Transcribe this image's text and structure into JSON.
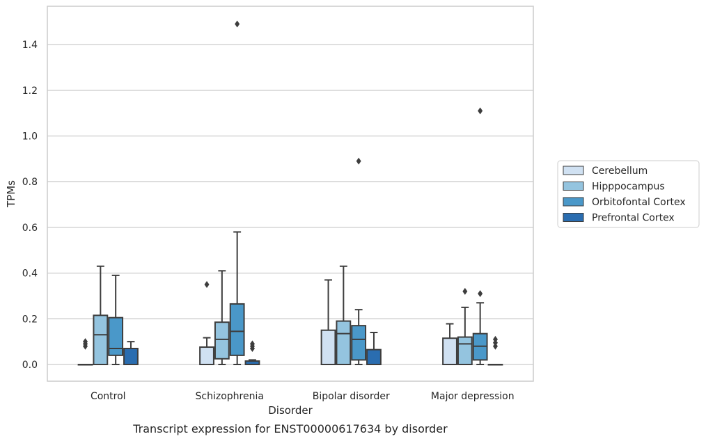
{
  "chart_data": {
    "type": "box",
    "xlabel": "Disorder",
    "ylabel": "TPMs",
    "caption": "Transcript expression for ENST00000617634 by disorder",
    "ylim": [
      -0.07,
      1.57
    ],
    "yticks": [
      0.0,
      0.2,
      0.4,
      0.6,
      0.8,
      1.0,
      1.2,
      1.4
    ],
    "ytick_labels": [
      "0.0",
      "0.2",
      "0.4",
      "0.6",
      "0.8",
      "1.0",
      "1.2",
      "1.4"
    ],
    "grid": "horizontal",
    "legend_position": "right",
    "categories": [
      "Control",
      "Schizophrenia",
      "Bipolar disorder",
      "Major depression"
    ],
    "series": [
      {
        "name": "Cerebellum",
        "color": "#d0e1f2",
        "boxes": [
          {
            "whisker_low": 0.0,
            "q1": 0.0,
            "median": 0.0,
            "q3": 0.0,
            "whisker_high": 0.0,
            "outliers": [
              0.08,
              0.09,
              0.1
            ]
          },
          {
            "whisker_low": 0.0,
            "q1": 0.0,
            "median": 0.0,
            "q3": 0.076,
            "whisker_high": 0.117,
            "outliers": [
              0.35
            ]
          },
          {
            "whisker_low": 0.0,
            "q1": 0.0,
            "median": 0.0,
            "q3": 0.15,
            "whisker_high": 0.37,
            "outliers": []
          },
          {
            "whisker_low": 0.0,
            "q1": 0.0,
            "median": 0.0,
            "q3": 0.115,
            "whisker_high": 0.178,
            "outliers": []
          }
        ]
      },
      {
        "name": "Hipppocampus",
        "color": "#94c4df",
        "boxes": [
          {
            "whisker_low": 0.0,
            "q1": 0.0,
            "median": 0.13,
            "q3": 0.215,
            "whisker_high": 0.43,
            "outliers": []
          },
          {
            "whisker_low": 0.0,
            "q1": 0.025,
            "median": 0.11,
            "q3": 0.185,
            "whisker_high": 0.41,
            "outliers": []
          },
          {
            "whisker_low": 0.0,
            "q1": 0.0,
            "median": 0.135,
            "q3": 0.19,
            "whisker_high": 0.43,
            "outliers": []
          },
          {
            "whisker_low": 0.0,
            "q1": 0.0,
            "median": 0.09,
            "q3": 0.12,
            "whisker_high": 0.25,
            "outliers": [
              0.32
            ]
          }
        ]
      },
      {
        "name": "Orbitofontal Cortex",
        "color": "#4a98c9",
        "boxes": [
          {
            "whisker_low": 0.0,
            "q1": 0.04,
            "median": 0.07,
            "q3": 0.205,
            "whisker_high": 0.39,
            "outliers": []
          },
          {
            "whisker_low": 0.0,
            "q1": 0.04,
            "median": 0.145,
            "q3": 0.265,
            "whisker_high": 0.58,
            "outliers": [
              1.49
            ]
          },
          {
            "whisker_low": 0.0,
            "q1": 0.02,
            "median": 0.11,
            "q3": 0.17,
            "whisker_high": 0.24,
            "outliers": [
              0.89
            ]
          },
          {
            "whisker_low": 0.0,
            "q1": 0.02,
            "median": 0.08,
            "q3": 0.135,
            "whisker_high": 0.27,
            "outliers": [
              0.31,
              1.11
            ]
          }
        ]
      },
      {
        "name": "Prefrontal Cortex",
        "color": "#2a6db0",
        "boxes": [
          {
            "whisker_low": 0.0,
            "q1": 0.0,
            "median": 0.0,
            "q3": 0.07,
            "whisker_high": 0.1,
            "outliers": []
          },
          {
            "whisker_low": 0.0,
            "q1": 0.0,
            "median": 0.0,
            "q3": 0.015,
            "whisker_high": 0.02,
            "outliers": [
              0.07,
              0.08,
              0.09
            ]
          },
          {
            "whisker_low": 0.0,
            "q1": 0.0,
            "median": 0.0,
            "q3": 0.065,
            "whisker_high": 0.14,
            "outliers": []
          },
          {
            "whisker_low": 0.0,
            "q1": 0.0,
            "median": 0.0,
            "q3": 0.0,
            "whisker_high": 0.0,
            "outliers": [
              0.08,
              0.095,
              0.11
            ]
          }
        ]
      }
    ]
  }
}
